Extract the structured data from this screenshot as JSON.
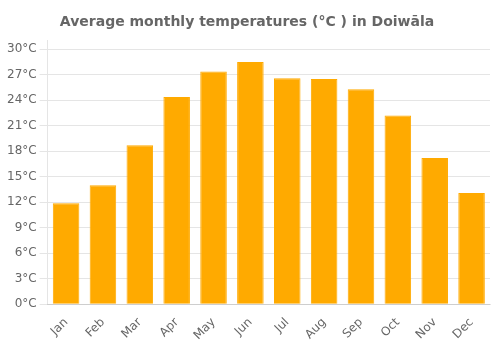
{
  "chart_data": {
    "type": "bar",
    "title": "Average monthly temperatures (°C ) in Doiwāla",
    "categories": [
      "Jan",
      "Feb",
      "Mar",
      "Apr",
      "May",
      "Jun",
      "Jul",
      "Aug",
      "Sep",
      "Oct",
      "Nov",
      "Dec"
    ],
    "values": [
      11.9,
      14.0,
      18.7,
      24.4,
      27.4,
      28.5,
      26.6,
      26.5,
      25.3,
      22.2,
      17.2,
      13.1
    ],
    "color": "#FFAA00",
    "ylim": [
      0,
      31
    ],
    "yticks": [
      {
        "value": 0,
        "label": "0°C"
      },
      {
        "value": 3,
        "label": "3°C"
      },
      {
        "value": 6,
        "label": "6°C"
      },
      {
        "value": 9,
        "label": "9°C"
      },
      {
        "value": 12,
        "label": "12°C"
      },
      {
        "value": 15,
        "label": "15°C"
      },
      {
        "value": 18,
        "label": "18°C"
      },
      {
        "value": 21,
        "label": "21°C"
      },
      {
        "value": 24,
        "label": "24°C"
      },
      {
        "value": 27,
        "label": "27°C"
      },
      {
        "value": 30,
        "label": "30°C"
      }
    ],
    "grid": true
  }
}
